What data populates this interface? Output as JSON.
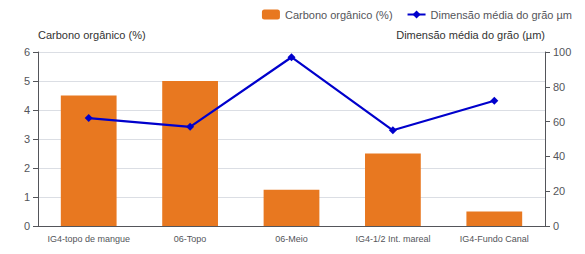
{
  "chart_data": {
    "type": "bar",
    "ylabel": "Carbono orgânico (%)",
    "y2label": "Dimensão média do grão (µm)",
    "categories": [
      "IG4-topo de mangue",
      "06-Topo",
      "06-Meio",
      "IG4-1/2 Int. mareal",
      "IG4-Fundo Canal"
    ],
    "series": [
      {
        "name": "Carbono orgânico (%)",
        "type": "bar",
        "color": "#E87820",
        "values": [
          4.5,
          5.0,
          1.25,
          2.5,
          0.5
        ]
      },
      {
        "name": "Dimensão média do grão µm",
        "type": "line",
        "color": "#0000CC",
        "marker": "diamond",
        "axis": "y2",
        "values": [
          62,
          57,
          97,
          55,
          72
        ]
      }
    ],
    "ylim": [
      0,
      6
    ],
    "yticks": [
      0,
      1,
      2,
      3,
      4,
      5,
      6
    ],
    "y2lim": [
      0,
      100
    ],
    "y2ticks": [
      0,
      20,
      40,
      60,
      80,
      100
    ],
    "grid": true,
    "legend": "upper right"
  }
}
